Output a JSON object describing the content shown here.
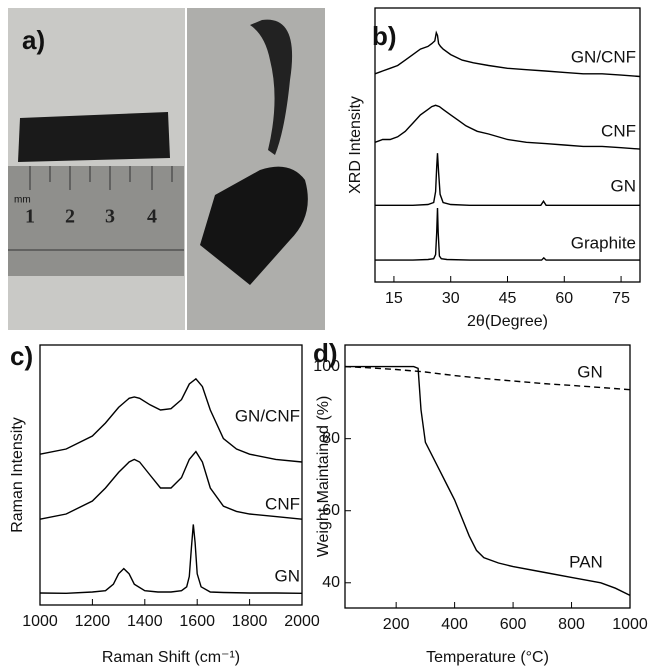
{
  "photo": {
    "label": "a)",
    "ruler_marks": [
      "mm",
      "1",
      "2",
      "3",
      "4"
    ]
  },
  "chart_data": [
    {
      "type": "line",
      "title": "b)",
      "xlabel": "2θ(Degree)",
      "ylabel": "XRD Intensity",
      "xlim": [
        10,
        80
      ],
      "xticks": [
        15,
        30,
        45,
        60,
        75
      ],
      "ylim": [
        0,
        100
      ],
      "color": "#000",
      "series": [
        {
          "name": "GN/CNF",
          "x": [
            10,
            12,
            14,
            16,
            18,
            20,
            22,
            24,
            25,
            25.8,
            26.2,
            26.5,
            26.8,
            27.3,
            28,
            30,
            33,
            36,
            40,
            45,
            50,
            55,
            60,
            65,
            70,
            75,
            80
          ],
          "values": [
            76,
            77,
            78,
            79,
            81,
            83,
            85,
            86,
            87,
            88,
            91,
            90,
            87,
            86,
            85,
            83,
            81,
            80,
            79,
            78,
            77.5,
            77,
            76.5,
            76,
            76,
            75.5,
            75
          ]
        },
        {
          "name": "CNF",
          "x": [
            10,
            12,
            14,
            16,
            18,
            20,
            22,
            24,
            25,
            26,
            27,
            28,
            30,
            32,
            34,
            37,
            40,
            45,
            50,
            55,
            60,
            65,
            70,
            75,
            80
          ],
          "values": [
            51,
            52,
            52,
            53,
            55,
            58,
            61,
            63,
            64,
            64.5,
            64,
            63,
            61,
            59,
            57,
            55,
            54,
            52,
            51,
            50.5,
            50,
            49.5,
            49.5,
            49,
            48.5
          ]
        },
        {
          "name": "GN",
          "x": [
            10,
            15,
            20,
            24,
            25.5,
            26,
            26.3,
            26.5,
            26.8,
            27.2,
            28,
            30,
            35,
            45,
            53.8,
            54.5,
            55.2,
            60,
            70,
            80
          ],
          "values": [
            28,
            28,
            28,
            28.3,
            29,
            33,
            42,
            47,
            40,
            32,
            29,
            28.3,
            28,
            28,
            28,
            29.5,
            28,
            28,
            28,
            28
          ]
        },
        {
          "name": "Graphite",
          "x": [
            10,
            15,
            20,
            24,
            25.5,
            26,
            26.3,
            26.5,
            26.7,
            27,
            27.5,
            29,
            35,
            45,
            54,
            54.6,
            55.2,
            60,
            70,
            80
          ],
          "values": [
            8,
            8,
            8,
            8.2,
            8.5,
            10,
            18,
            27,
            18,
            9.5,
            8.5,
            8.2,
            8,
            8,
            8,
            8.8,
            8,
            8,
            8,
            8
          ]
        }
      ]
    },
    {
      "type": "line",
      "title": "c)",
      "xlabel": "Raman Shift (cm⁻¹)",
      "ylabel": "Raman Intensity",
      "xlim": [
        1000,
        2000
      ],
      "xticks": [
        1000,
        1200,
        1400,
        1600,
        1800,
        2000
      ],
      "ylim": [
        0,
        100
      ],
      "color": "#000",
      "series": [
        {
          "name": "GN/CNF",
          "x": [
            1000,
            1100,
            1200,
            1250,
            1300,
            1340,
            1360,
            1380,
            1420,
            1460,
            1500,
            1540,
            1570,
            1595,
            1620,
            1650,
            1700,
            1750,
            1800,
            1900,
            2000
          ],
          "values": [
            58,
            60,
            65,
            70,
            76,
            79.5,
            80,
            79.5,
            77,
            75,
            75.5,
            79,
            85,
            87,
            84,
            75,
            64,
            60,
            58,
            56,
            55
          ]
        },
        {
          "name": "CNF",
          "x": [
            1000,
            1100,
            1200,
            1250,
            1300,
            1340,
            1360,
            1380,
            1420,
            1460,
            1500,
            1540,
            1570,
            1595,
            1620,
            1650,
            1700,
            1750,
            1800,
            1900,
            2000
          ],
          "values": [
            33,
            35,
            40,
            45,
            51,
            55,
            56,
            55,
            50,
            45,
            45,
            49,
            56,
            59,
            55,
            45,
            38,
            36,
            35,
            34,
            33
          ]
        },
        {
          "name": "GN",
          "x": [
            1000,
            1100,
            1200,
            1250,
            1280,
            1300,
            1320,
            1340,
            1360,
            1400,
            1450,
            1500,
            1540,
            1560,
            1570,
            1578,
            1585,
            1592,
            1600,
            1615,
            1650,
            1700,
            1800,
            1900,
            2000
          ],
          "values": [
            4.6,
            4.5,
            5,
            5.5,
            8,
            12,
            14,
            12,
            8,
            5.5,
            5,
            5,
            5.5,
            7,
            11,
            22,
            31,
            24,
            12,
            7,
            5,
            4.8,
            4.6,
            4.6,
            4.5
          ]
        }
      ]
    },
    {
      "type": "line",
      "title": "d)",
      "xlabel": "Temperature (°C)",
      "ylabel": "Weight Maintained (%)",
      "xlim": [
        25,
        1000
      ],
      "xticks": [
        200,
        400,
        600,
        800,
        1000
      ],
      "ylim": [
        33,
        106
      ],
      "yticks": [
        40,
        60,
        80,
        100
      ],
      "color": "#000",
      "series": [
        {
          "name": "GN",
          "dash": true,
          "x": [
            25,
            100,
            200,
            300,
            400,
            500,
            600,
            700,
            800,
            900,
            1000
          ],
          "values": [
            100,
            99.7,
            99.2,
            98.5,
            97.5,
            96.7,
            96,
            95.3,
            94.8,
            94.2,
            93.6
          ]
        },
        {
          "name": "PAN",
          "dash": false,
          "x": [
            25,
            100,
            200,
            260,
            275,
            285,
            300,
            325,
            350,
            375,
            400,
            425,
            450,
            475,
            500,
            550,
            600,
            700,
            800,
            900,
            950,
            1000
          ],
          "values": [
            100,
            100,
            100,
            100,
            99.5,
            88,
            79,
            75,
            71,
            67,
            63,
            58,
            53,
            49,
            47,
            45.5,
            44.5,
            43,
            41.5,
            40,
            38.5,
            36.5
          ]
        }
      ]
    }
  ]
}
